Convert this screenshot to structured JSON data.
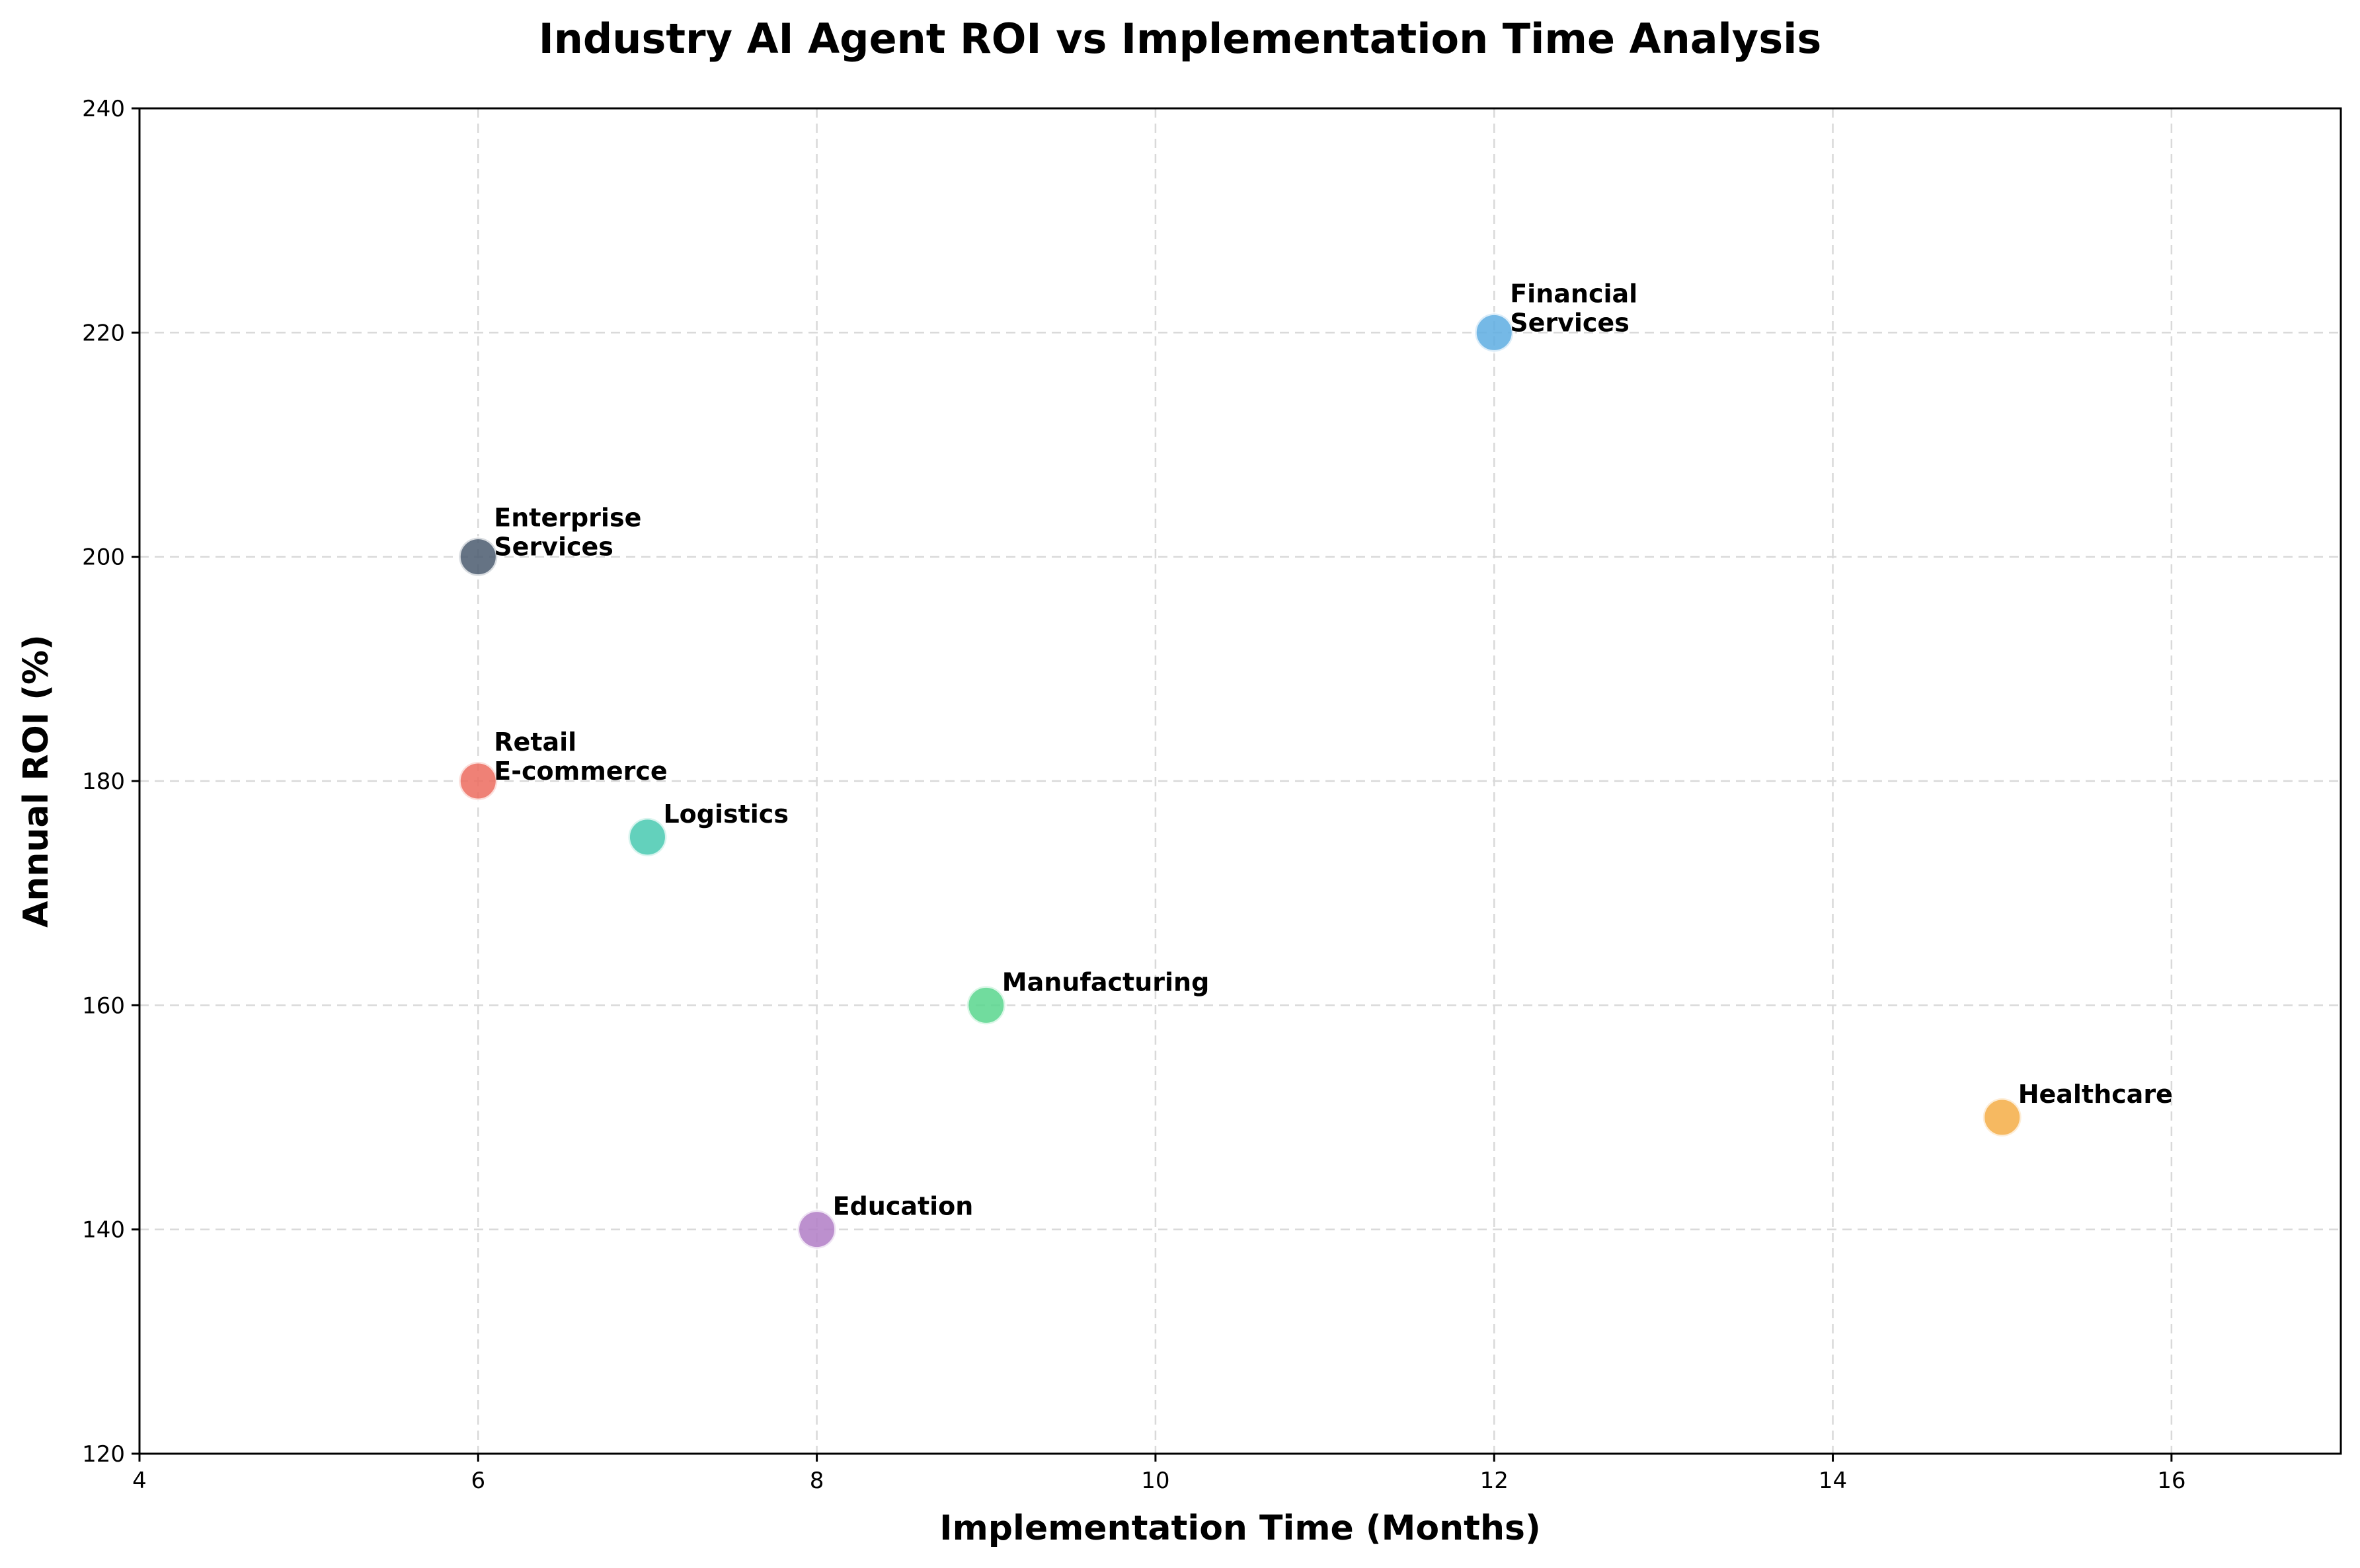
{
  "chart_data": {
    "type": "scatter",
    "title": "Industry AI Agent ROI vs Implementation Time Analysis",
    "xlabel": "Implementation Time (Months)",
    "ylabel": "Annual ROI (%)",
    "xlim": [
      4,
      17
    ],
    "ylim": [
      120,
      240
    ],
    "xticks": [
      4,
      6,
      8,
      10,
      12,
      14,
      16
    ],
    "yticks": [
      120,
      140,
      160,
      180,
      200,
      220,
      240
    ],
    "grid": true,
    "points": [
      {
        "label": [
          "Financial",
          "Services"
        ],
        "x": 12,
        "y": 220,
        "color": "#5DADE2"
      },
      {
        "label": [
          "Enterprise",
          "Services"
        ],
        "x": 6,
        "y": 200,
        "color": "#4A5A6E"
      },
      {
        "label": [
          "Retail",
          "E-commerce"
        ],
        "x": 6,
        "y": 180,
        "color": "#EC6B5E"
      },
      {
        "label": [
          "Logistics"
        ],
        "x": 7,
        "y": 175,
        "color": "#48C9B0"
      },
      {
        "label": [
          "Manufacturing"
        ],
        "x": 9,
        "y": 160,
        "color": "#58D68D"
      },
      {
        "label": [
          "Healthcare"
        ],
        "x": 15,
        "y": 150,
        "color": "#F5AD45"
      },
      {
        "label": [
          "Education"
        ],
        "x": 8,
        "y": 140,
        "color": "#B07CC6"
      }
    ]
  }
}
